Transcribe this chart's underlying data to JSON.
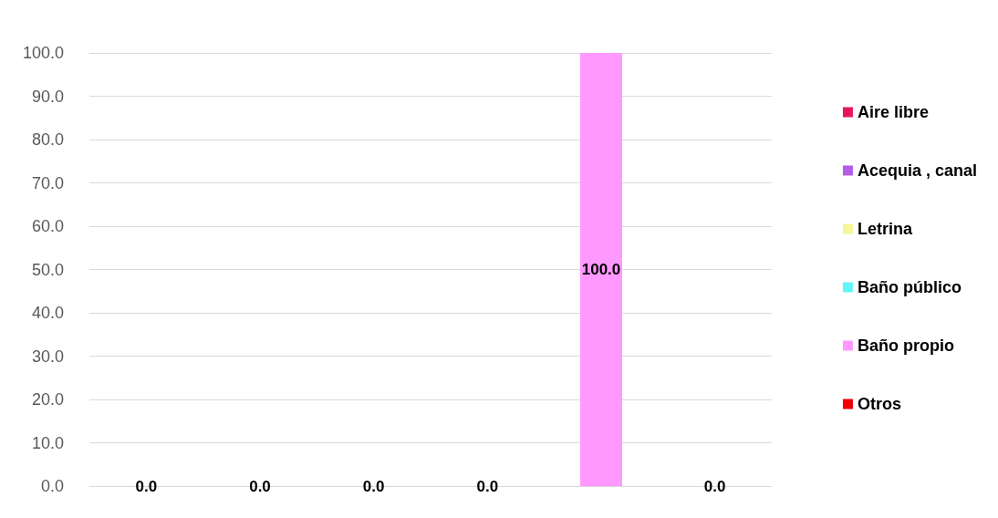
{
  "chart_data": {
    "type": "bar",
    "categories": [
      null,
      null,
      null,
      null,
      null,
      null
    ],
    "series": [
      {
        "name": "Aire libre",
        "color": "#e6175c",
        "values": [
          0,
          null,
          null,
          null,
          null,
          null
        ],
        "value_labels": [
          "0.0",
          null,
          null,
          null,
          null,
          null
        ]
      },
      {
        "name": "Acequia , canal",
        "color": "#b45ee6",
        "values": [
          null,
          0,
          null,
          null,
          null,
          null
        ],
        "value_labels": [
          null,
          "0.0",
          null,
          null,
          null,
          null
        ]
      },
      {
        "name": "Letrina",
        "color": "#f5f599",
        "values": [
          null,
          null,
          0,
          null,
          null,
          null
        ],
        "value_labels": [
          null,
          null,
          "0.0",
          null,
          null,
          null
        ]
      },
      {
        "name": "Baño público",
        "color": "#66f5f5",
        "values": [
          null,
          null,
          null,
          0,
          null,
          null
        ],
        "value_labels": [
          null,
          null,
          null,
          "0.0",
          null,
          null
        ]
      },
      {
        "name": "Baño propio",
        "color": "#ff99ff",
        "values": [
          null,
          null,
          null,
          null,
          100,
          null
        ],
        "value_labels": [
          null,
          null,
          null,
          null,
          "100.0",
          null
        ]
      },
      {
        "name": "Otros",
        "color": "#f00000",
        "values": [
          null,
          null,
          null,
          null,
          null,
          0
        ],
        "value_labels": [
          null,
          null,
          null,
          null,
          null,
          "0.0"
        ]
      }
    ],
    "ylim": [
      0,
      100
    ],
    "yticks": [
      {
        "value": 0,
        "label": "0.0"
      },
      {
        "value": 10,
        "label": "10.0"
      },
      {
        "value": 20,
        "label": "20.0"
      },
      {
        "value": 30,
        "label": "30.0"
      },
      {
        "value": 40,
        "label": "40.0"
      },
      {
        "value": 50,
        "label": "50.0"
      },
      {
        "value": 60,
        "label": "60.0"
      },
      {
        "value": 70,
        "label": "70.0"
      },
      {
        "value": 80,
        "label": "80.0"
      },
      {
        "value": 90,
        "label": "90.0"
      },
      {
        "value": 100,
        "label": "100.0"
      }
    ],
    "grid": "y",
    "legend": "right"
  }
}
